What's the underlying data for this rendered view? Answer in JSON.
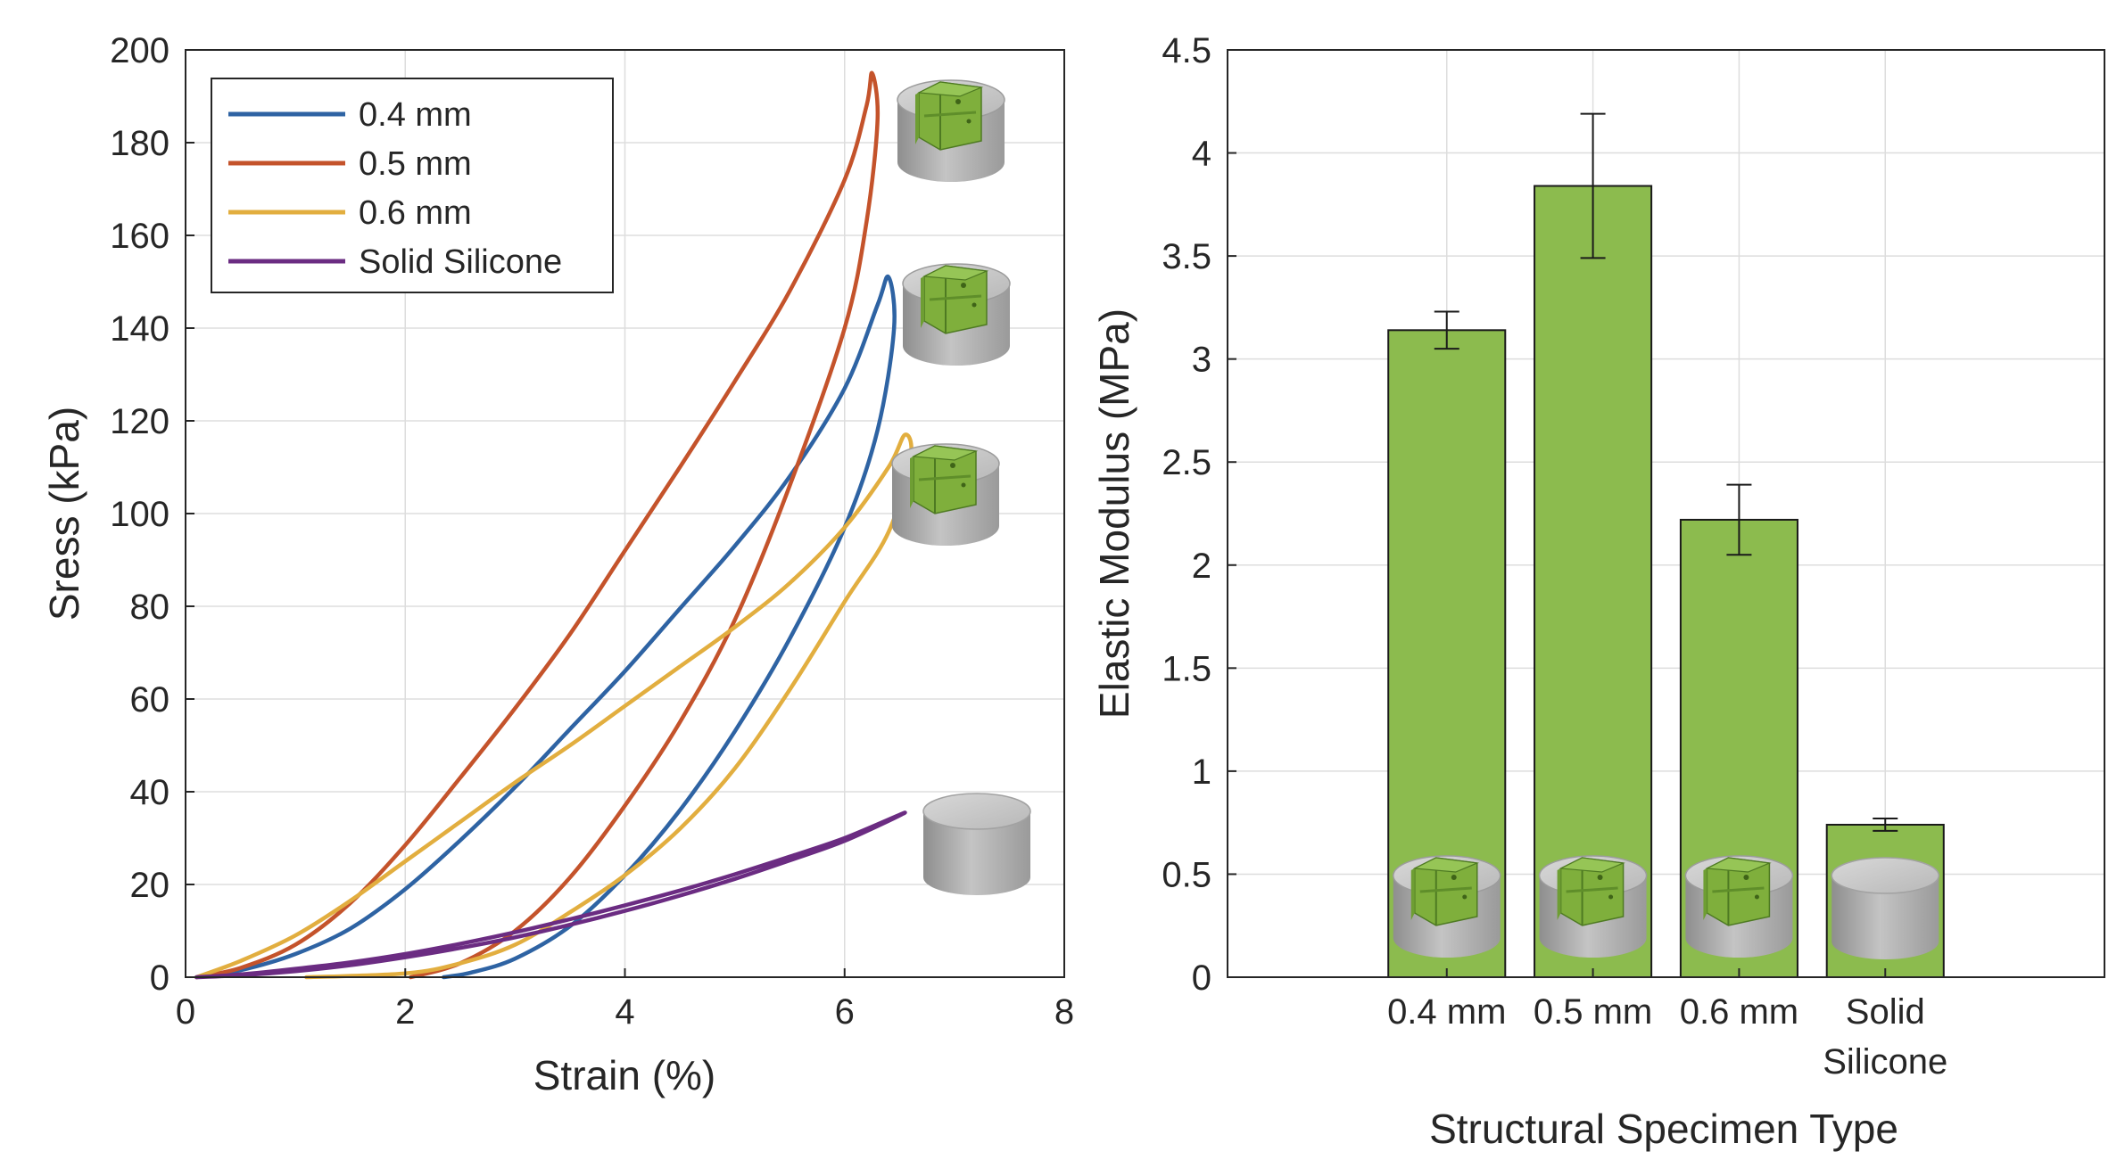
{
  "colors": {
    "s04": "#2E63A3",
    "s05": "#C4532B",
    "s06": "#E2AE3F",
    "solid": "#6B2C82",
    "bar_fill": "#8CBB4E",
    "bar_edge": "#1A1A1A",
    "grid": "#DDDDDD"
  },
  "chart_data": [
    {
      "type": "line",
      "xlabel": "Strain (%)",
      "ylabel": "Sress (kPa)",
      "xlim": [
        0,
        8
      ],
      "ylim": [
        0,
        200
      ],
      "xticks": [
        "0",
        "2",
        "4",
        "6",
        "8"
      ],
      "yticks": [
        "0",
        "20",
        "40",
        "60",
        "80",
        "100",
        "120",
        "140",
        "160",
        "180",
        "200"
      ],
      "grid": true,
      "legend_position": "top-left",
      "series": [
        {
          "name": "0.4 mm",
          "color_key": "s04",
          "loading": [
            [
              0.1,
              0
            ],
            [
              0.5,
              1.5
            ],
            [
              1.0,
              5
            ],
            [
              1.5,
              10.5
            ],
            [
              2.0,
              19
            ],
            [
              2.5,
              29.5
            ],
            [
              3.0,
              41
            ],
            [
              3.5,
              53.5
            ],
            [
              4.0,
              66
            ],
            [
              4.5,
              79.5
            ],
            [
              5.0,
              93
            ],
            [
              5.5,
              108
            ],
            [
              6.0,
              127
            ],
            [
              6.3,
              145
            ],
            [
              6.4,
              151
            ]
          ],
          "unloading": [
            [
              6.4,
              151
            ],
            [
              6.45,
              140
            ],
            [
              6.3,
              118
            ],
            [
              6.0,
              97
            ],
            [
              5.5,
              73
            ],
            [
              5.0,
              53
            ],
            [
              4.5,
              36
            ],
            [
              4.0,
              22
            ],
            [
              3.5,
              11
            ],
            [
              3.0,
              4
            ],
            [
              2.6,
              1
            ],
            [
              2.35,
              0
            ]
          ]
        },
        {
          "name": "0.5 mm",
          "color_key": "s05",
          "loading": [
            [
              0.1,
              0
            ],
            [
              0.5,
              2
            ],
            [
              1.0,
              7
            ],
            [
              1.5,
              16
            ],
            [
              2.0,
              28.5
            ],
            [
              2.5,
              43
            ],
            [
              3.0,
              58
            ],
            [
              3.5,
              74
            ],
            [
              4.0,
              92
            ],
            [
              4.5,
              110
            ],
            [
              5.0,
              128.5
            ],
            [
              5.5,
              148
            ],
            [
              6.0,
              172
            ],
            [
              6.2,
              188
            ],
            [
              6.25,
              195
            ]
          ],
          "unloading": [
            [
              6.25,
              195
            ],
            [
              6.3,
              185
            ],
            [
              6.2,
              163
            ],
            [
              6.0,
              140
            ],
            [
              5.5,
              106
            ],
            [
              5.0,
              77
            ],
            [
              4.5,
              55
            ],
            [
              4.0,
              37
            ],
            [
              3.5,
              21.5
            ],
            [
              3.0,
              10
            ],
            [
              2.5,
              3
            ],
            [
              2.05,
              0
            ]
          ]
        },
        {
          "name": "0.6 mm",
          "color_key": "s06",
          "loading": [
            [
              0.1,
              0
            ],
            [
              0.5,
              3.5
            ],
            [
              1.0,
              9
            ],
            [
              1.5,
              16.5
            ],
            [
              2.0,
              25
            ],
            [
              2.5,
              33.5
            ],
            [
              3.0,
              42
            ],
            [
              3.5,
              50
            ],
            [
              4.0,
              58.5
            ],
            [
              4.5,
              67
            ],
            [
              5.0,
              75.5
            ],
            [
              5.5,
              85
            ],
            [
              6.0,
              97
            ],
            [
              6.4,
              110
            ],
            [
              6.55,
              117
            ]
          ],
          "unloading": [
            [
              6.55,
              117
            ],
            [
              6.6,
              112
            ],
            [
              6.4,
              96
            ],
            [
              6.0,
              81
            ],
            [
              5.5,
              62
            ],
            [
              5.0,
              45
            ],
            [
              4.5,
              32
            ],
            [
              4.0,
              22
            ],
            [
              3.5,
              14
            ],
            [
              3.0,
              7
            ],
            [
              2.5,
              3
            ],
            [
              2.0,
              0.8
            ],
            [
              1.1,
              0
            ]
          ]
        },
        {
          "name": "Solid Silicone",
          "color_key": "solid",
          "loading": [
            [
              0.1,
              0
            ],
            [
              0.5,
              0.6
            ],
            [
              1.0,
              1.8
            ],
            [
              1.5,
              3.2
            ],
            [
              2.0,
              5
            ],
            [
              2.5,
              7.2
            ],
            [
              3.0,
              9.7
            ],
            [
              3.5,
              12.5
            ],
            [
              4.0,
              15.5
            ],
            [
              4.5,
              18.7
            ],
            [
              5.0,
              22.2
            ],
            [
              5.5,
              26
            ],
            [
              6.0,
              30
            ],
            [
              6.55,
              35.5
            ]
          ],
          "unloading": [
            [
              6.55,
              35.5
            ],
            [
              6.0,
              29.4
            ],
            [
              5.5,
              25.2
            ],
            [
              5.0,
              21.2
            ],
            [
              4.5,
              17.6
            ],
            [
              4.0,
              14.3
            ],
            [
              3.5,
              11.3
            ],
            [
              3.0,
              8.6
            ],
            [
              2.5,
              6.3
            ],
            [
              2.0,
              4.3
            ],
            [
              1.5,
              2.6
            ],
            [
              1.0,
              1.3
            ],
            [
              0.5,
              0.4
            ],
            [
              0.1,
              0
            ]
          ]
        }
      ]
    },
    {
      "type": "bar",
      "xlabel": "Structural Specimen Type",
      "ylabel": "Elastic Modulus (MPa)",
      "ylim": [
        0,
        4.5
      ],
      "yticks": [
        "0",
        "0.5",
        "1",
        "1.5",
        "2",
        "2.5",
        "3",
        "3.5",
        "4",
        "4.5"
      ],
      "grid": true,
      "categories": [
        [
          "0.4 mm"
        ],
        [
          "0.5 mm"
        ],
        [
          "0.6 mm"
        ],
        [
          "Solid",
          "Silicone"
        ]
      ],
      "values": [
        3.14,
        3.84,
        2.22,
        0.74
      ],
      "error_low": [
        3.05,
        3.49,
        2.05,
        0.71
      ],
      "error_high": [
        3.23,
        4.19,
        2.39,
        0.77
      ]
    }
  ],
  "specimen_icons": {
    "line_chart": [
      {
        "kind": "lattice-specimen-icon"
      },
      {
        "kind": "lattice-specimen-icon"
      },
      {
        "kind": "lattice-specimen-icon"
      },
      {
        "kind": "solid-specimen-icon"
      }
    ],
    "bar_chart": [
      {
        "kind": "lattice-specimen-icon"
      },
      {
        "kind": "lattice-specimen-icon"
      },
      {
        "kind": "lattice-specimen-icon"
      },
      {
        "kind": "solid-specimen-icon"
      }
    ]
  }
}
